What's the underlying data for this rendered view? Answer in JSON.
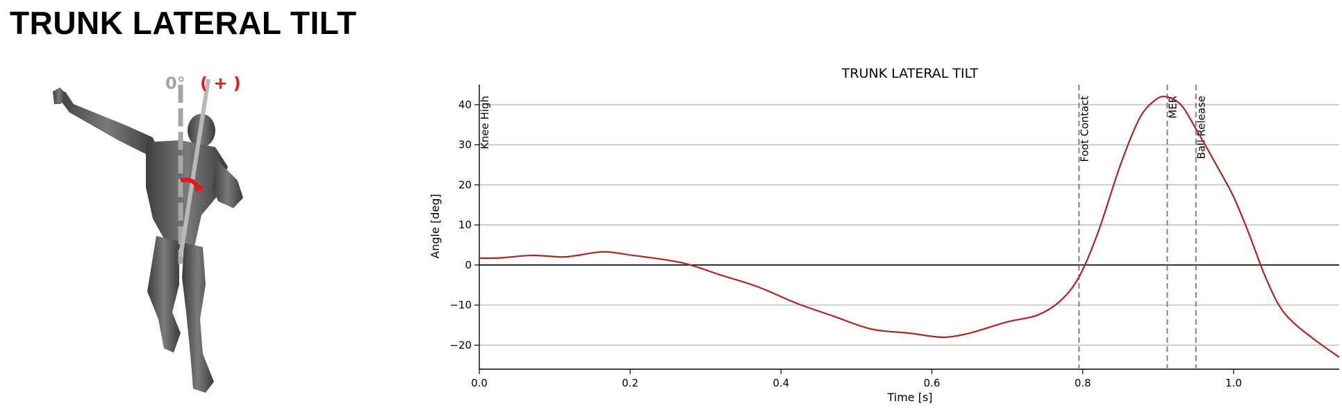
{
  "page": {
    "title": "TRUNK LATERAL TILT"
  },
  "figure": {
    "zero_label": "0°",
    "positive_label": "( + )",
    "colors": {
      "reference": "#a6a6a6",
      "positive": "#e8141a",
      "body": "#5a5a5a"
    }
  },
  "chart_data": {
    "type": "line",
    "title": "TRUNK LATERAL TILT",
    "xlabel": "Time [s]",
    "ylabel": "Angle [deg]",
    "xlim": [
      0.0,
      1.14
    ],
    "ylim": [
      -26,
      45
    ],
    "xticks": [
      0.0,
      0.2,
      0.4,
      0.6,
      0.8,
      1.0
    ],
    "xtick_labels": [
      "0.0",
      "0.2",
      "0.4",
      "0.6",
      "0.8",
      "1.0"
    ],
    "yticks": [
      -20,
      -10,
      0,
      10,
      20,
      30,
      40
    ],
    "ytick_labels": [
      "−20",
      "−10",
      "0",
      "10",
      "20",
      "30",
      "40"
    ],
    "grid": "horizontal",
    "zero_line": true,
    "series": [
      {
        "color": "#b22222",
        "x": [
          0.0,
          0.03,
          0.07,
          0.11,
          0.13,
          0.165,
          0.2,
          0.25,
          0.28,
          0.32,
          0.37,
          0.42,
          0.47,
          0.52,
          0.57,
          0.6,
          0.62,
          0.65,
          0.7,
          0.74,
          0.77,
          0.795,
          0.82,
          0.85,
          0.875,
          0.895,
          0.91,
          0.93,
          0.95,
          0.98,
          1.0,
          1.02,
          1.04,
          1.06,
          1.08,
          1.11,
          1.14
        ],
        "y": [
          1.7,
          1.8,
          2.4,
          2.0,
          2.4,
          3.3,
          2.5,
          1.2,
          0.0,
          -2.5,
          -5.5,
          -9.5,
          -12.8,
          -16.0,
          -17.0,
          -17.8,
          -18.0,
          -17.0,
          -14.2,
          -12.5,
          -9.0,
          -3.0,
          8.0,
          25.0,
          36.5,
          41.0,
          42.0,
          40.0,
          34.0,
          24.0,
          17.0,
          8.0,
          -2.0,
          -10.0,
          -14.5,
          -19.0,
          -23.0
        ]
      }
    ],
    "events": [
      {
        "label": "Knee High",
        "x": 0.0
      },
      {
        "label": "Foot Contact",
        "x": 0.795
      },
      {
        "label": "MER",
        "x": 0.912
      },
      {
        "label": "Ball Release",
        "x": 0.95
      }
    ]
  }
}
